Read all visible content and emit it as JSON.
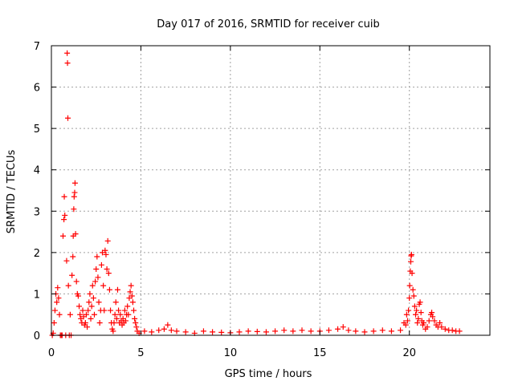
{
  "chart_data": {
    "type": "scatter",
    "title": "Day 017 of 2016, SRMTID for receiver cuib",
    "xlabel": "GPS time / hours",
    "ylabel": "SRMTID / TECUs",
    "xlim": [
      0,
      24.5
    ],
    "ylim": [
      0,
      7
    ],
    "xticks": [
      0,
      5,
      10,
      15,
      20
    ],
    "yticks": [
      0,
      1,
      2,
      3,
      4,
      5,
      6,
      7
    ],
    "grid": true,
    "legend": "none",
    "marker": "plus",
    "series": [
      {
        "name": "SRMTID",
        "color": "#ff0000",
        "points": [
          [
            0.05,
            0.0
          ],
          [
            0.1,
            0.05
          ],
          [
            0.15,
            0.3
          ],
          [
            0.2,
            0.6
          ],
          [
            0.25,
            1.0
          ],
          [
            0.3,
            0.8
          ],
          [
            0.35,
            1.15
          ],
          [
            0.4,
            0.9
          ],
          [
            0.45,
            0.5
          ],
          [
            0.5,
            0.0
          ],
          [
            0.55,
            0.0
          ],
          [
            0.6,
            0.0
          ],
          [
            0.65,
            2.4
          ],
          [
            0.7,
            2.8
          ],
          [
            0.72,
            3.35
          ],
          [
            0.75,
            2.9
          ],
          [
            0.8,
            0.0
          ],
          [
            0.85,
            1.8
          ],
          [
            0.88,
            6.82
          ],
          [
            0.9,
            6.58
          ],
          [
            0.92,
            5.25
          ],
          [
            0.95,
            1.2
          ],
          [
            1.0,
            0.0
          ],
          [
            1.05,
            0.5
          ],
          [
            1.1,
            0.0
          ],
          [
            1.15,
            1.45
          ],
          [
            1.2,
            1.9
          ],
          [
            1.22,
            2.4
          ],
          [
            1.25,
            3.05
          ],
          [
            1.27,
            3.35
          ],
          [
            1.3,
            3.45
          ],
          [
            1.32,
            3.68
          ],
          [
            1.35,
            2.45
          ],
          [
            1.4,
            1.3
          ],
          [
            1.45,
            1.0
          ],
          [
            1.5,
            0.95
          ],
          [
            1.55,
            0.7
          ],
          [
            1.6,
            0.5
          ],
          [
            1.65,
            0.4
          ],
          [
            1.7,
            0.3
          ],
          [
            1.75,
            0.6
          ],
          [
            1.8,
            0.45
          ],
          [
            1.85,
            0.25
          ],
          [
            1.9,
            0.3
          ],
          [
            1.95,
            0.5
          ],
          [
            2.0,
            0.2
          ],
          [
            2.05,
            0.6
          ],
          [
            2.1,
            0.8
          ],
          [
            2.15,
            1.0
          ],
          [
            2.2,
            0.4
          ],
          [
            2.25,
            0.7
          ],
          [
            2.3,
            1.2
          ],
          [
            2.35,
            0.9
          ],
          [
            2.4,
            0.5
          ],
          [
            2.45,
            1.3
          ],
          [
            2.5,
            1.6
          ],
          [
            2.55,
            1.9
          ],
          [
            2.6,
            1.4
          ],
          [
            2.65,
            0.8
          ],
          [
            2.7,
            0.3
          ],
          [
            2.75,
            0.6
          ],
          [
            2.8,
            1.7
          ],
          [
            2.85,
            2.0
          ],
          [
            2.9,
            1.2
          ],
          [
            2.95,
            0.6
          ],
          [
            3.0,
            2.05
          ],
          [
            3.05,
            1.95
          ],
          [
            3.1,
            1.6
          ],
          [
            3.15,
            2.28
          ],
          [
            3.2,
            1.5
          ],
          [
            3.25,
            1.1
          ],
          [
            3.3,
            0.6
          ],
          [
            3.35,
            0.3
          ],
          [
            3.4,
            0.15
          ],
          [
            3.45,
            0.1
          ],
          [
            3.5,
            0.3
          ],
          [
            3.55,
            0.5
          ],
          [
            3.6,
            0.8
          ],
          [
            3.65,
            0.4
          ],
          [
            3.7,
            1.1
          ],
          [
            3.75,
            0.6
          ],
          [
            3.8,
            0.3
          ],
          [
            3.85,
            0.5
          ],
          [
            3.9,
            0.35
          ],
          [
            3.95,
            0.25
          ],
          [
            4.0,
            0.4
          ],
          [
            4.05,
            0.3
          ],
          [
            4.1,
            0.6
          ],
          [
            4.15,
            0.35
          ],
          [
            4.2,
            0.5
          ],
          [
            4.25,
            0.7
          ],
          [
            4.3,
            0.5
          ],
          [
            4.35,
            0.9
          ],
          [
            4.4,
            1.05
          ],
          [
            4.45,
            1.2
          ],
          [
            4.5,
            0.95
          ],
          [
            4.55,
            0.8
          ],
          [
            4.6,
            0.6
          ],
          [
            4.65,
            0.4
          ],
          [
            4.7,
            0.3
          ],
          [
            4.75,
            0.2
          ],
          [
            4.8,
            0.1
          ],
          [
            4.9,
            0.05
          ],
          [
            5.2,
            0.1
          ],
          [
            5.6,
            0.08
          ],
          [
            6.0,
            0.12
          ],
          [
            6.3,
            0.15
          ],
          [
            6.5,
            0.25
          ],
          [
            6.7,
            0.12
          ],
          [
            7.0,
            0.1
          ],
          [
            7.5,
            0.08
          ],
          [
            8.0,
            0.05
          ],
          [
            8.5,
            0.1
          ],
          [
            9.0,
            0.08
          ],
          [
            9.5,
            0.07
          ],
          [
            10.0,
            0.06
          ],
          [
            10.5,
            0.08
          ],
          [
            11.0,
            0.1
          ],
          [
            11.5,
            0.09
          ],
          [
            12.0,
            0.08
          ],
          [
            12.5,
            0.1
          ],
          [
            13.0,
            0.12
          ],
          [
            13.5,
            0.1
          ],
          [
            14.0,
            0.12
          ],
          [
            14.5,
            0.1
          ],
          [
            15.0,
            0.1
          ],
          [
            15.5,
            0.12
          ],
          [
            16.0,
            0.15
          ],
          [
            16.3,
            0.2
          ],
          [
            16.6,
            0.12
          ],
          [
            17.0,
            0.1
          ],
          [
            17.5,
            0.08
          ],
          [
            18.0,
            0.1
          ],
          [
            18.5,
            0.12
          ],
          [
            19.0,
            0.1
          ],
          [
            19.5,
            0.12
          ],
          [
            19.7,
            0.3
          ],
          [
            19.8,
            0.25
          ],
          [
            19.85,
            0.5
          ],
          [
            19.9,
            0.35
          ],
          [
            19.95,
            0.6
          ],
          [
            20.0,
            0.9
          ],
          [
            20.02,
            1.2
          ],
          [
            20.05,
            1.55
          ],
          [
            20.08,
            1.78
          ],
          [
            20.1,
            1.92
          ],
          [
            20.12,
            1.95
          ],
          [
            20.15,
            1.5
          ],
          [
            20.2,
            1.1
          ],
          [
            20.25,
            0.95
          ],
          [
            20.3,
            0.7
          ],
          [
            20.35,
            0.5
          ],
          [
            20.4,
            0.6
          ],
          [
            20.45,
            0.3
          ],
          [
            20.5,
            0.4
          ],
          [
            20.55,
            0.75
          ],
          [
            20.6,
            0.8
          ],
          [
            20.65,
            0.55
          ],
          [
            20.7,
            0.35
          ],
          [
            20.75,
            0.25
          ],
          [
            20.8,
            0.3
          ],
          [
            20.9,
            0.15
          ],
          [
            21.0,
            0.2
          ],
          [
            21.1,
            0.35
          ],
          [
            21.2,
            0.5
          ],
          [
            21.25,
            0.55
          ],
          [
            21.3,
            0.45
          ],
          [
            21.4,
            0.35
          ],
          [
            21.5,
            0.25
          ],
          [
            21.6,
            0.2
          ],
          [
            21.7,
            0.3
          ],
          [
            21.8,
            0.2
          ],
          [
            22.0,
            0.15
          ],
          [
            22.2,
            0.12
          ],
          [
            22.4,
            0.12
          ],
          [
            22.6,
            0.1
          ],
          [
            22.8,
            0.1
          ]
        ]
      }
    ]
  }
}
